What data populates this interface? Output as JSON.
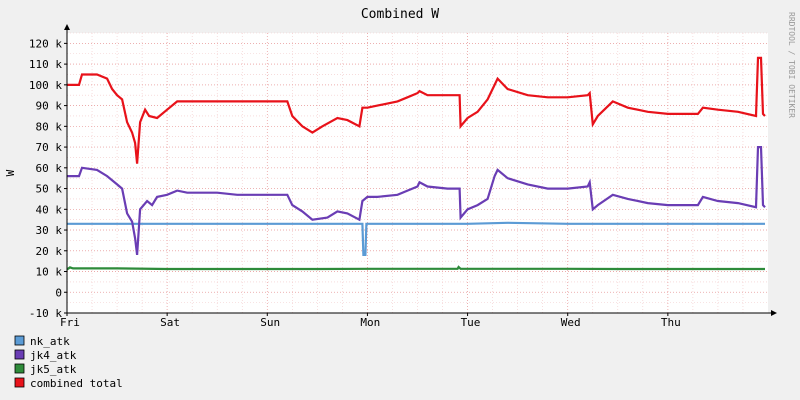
{
  "chart_data": {
    "type": "line",
    "title": "Combined W",
    "ylabel": "W",
    "credit": "RRDTOOL / TOBI OETIKER",
    "ylim": [
      -10000,
      125000
    ],
    "yticks": [
      {
        "value": 120000,
        "label": "120 k"
      },
      {
        "value": 110000,
        "label": "110 k"
      },
      {
        "value": 100000,
        "label": "100 k"
      },
      {
        "value": 90000,
        "label": "90 k"
      },
      {
        "value": 80000,
        "label": "80 k"
      },
      {
        "value": 70000,
        "label": "70 k"
      },
      {
        "value": 60000,
        "label": "60 k"
      },
      {
        "value": 50000,
        "label": "50 k"
      },
      {
        "value": 40000,
        "label": "40 k"
      },
      {
        "value": 30000,
        "label": "30 k"
      },
      {
        "value": 20000,
        "label": "20 k"
      },
      {
        "value": 10000,
        "label": "10 k"
      },
      {
        "value": 0,
        "label": "0"
      },
      {
        "value": -10000,
        "label": "-10 k"
      }
    ],
    "xlim": [
      0,
      7
    ],
    "xticks": [
      {
        "value": 0,
        "label": "Fri"
      },
      {
        "value": 1,
        "label": "Sat"
      },
      {
        "value": 2,
        "label": "Sun"
      },
      {
        "value": 3,
        "label": "Mon"
      },
      {
        "value": 4,
        "label": "Tue"
      },
      {
        "value": 5,
        "label": "Wed"
      },
      {
        "value": 6,
        "label": "Thu"
      }
    ],
    "grid": true,
    "legend_position": "bottom-left",
    "series": [
      {
        "name": "nk_atk",
        "color": "#5b9bd5",
        "points": [
          [
            0,
            33000
          ],
          [
            0.5,
            33000
          ],
          [
            1,
            33000
          ],
          [
            1.5,
            33000
          ],
          [
            2,
            33000
          ],
          [
            2.5,
            33000
          ],
          [
            2.95,
            33000
          ],
          [
            2.96,
            18000
          ],
          [
            2.98,
            18000
          ],
          [
            2.99,
            33000
          ],
          [
            3.5,
            33000
          ],
          [
            4,
            33000
          ],
          [
            4.4,
            33500
          ],
          [
            5,
            33000
          ],
          [
            5.5,
            33000
          ],
          [
            6,
            33000
          ],
          [
            6.5,
            33000
          ],
          [
            6.97,
            33000
          ]
        ]
      },
      {
        "name": "jk4_atk",
        "color": "#6a3db4",
        "points": [
          [
            0,
            56000
          ],
          [
            0.12,
            56000
          ],
          [
            0.15,
            60000
          ],
          [
            0.3,
            59000
          ],
          [
            0.4,
            56000
          ],
          [
            0.5,
            52000
          ],
          [
            0.55,
            50000
          ],
          [
            0.6,
            38000
          ],
          [
            0.65,
            34000
          ],
          [
            0.68,
            26000
          ],
          [
            0.7,
            18000
          ],
          [
            0.73,
            40000
          ],
          [
            0.8,
            44000
          ],
          [
            0.85,
            42000
          ],
          [
            0.9,
            46000
          ],
          [
            1,
            47000
          ],
          [
            1.1,
            49000
          ],
          [
            1.2,
            48000
          ],
          [
            1.5,
            48000
          ],
          [
            1.7,
            47000
          ],
          [
            2.2,
            47000
          ],
          [
            2.25,
            42000
          ],
          [
            2.35,
            39000
          ],
          [
            2.45,
            35000
          ],
          [
            2.6,
            36000
          ],
          [
            2.7,
            39000
          ],
          [
            2.8,
            38000
          ],
          [
            2.92,
            35000
          ],
          [
            2.95,
            44000
          ],
          [
            3,
            46000
          ],
          [
            3.1,
            46000
          ],
          [
            3.3,
            47000
          ],
          [
            3.4,
            49000
          ],
          [
            3.5,
            51000
          ],
          [
            3.52,
            53000
          ],
          [
            3.6,
            51000
          ],
          [
            3.8,
            50000
          ],
          [
            3.92,
            50000
          ],
          [
            3.93,
            36000
          ],
          [
            4,
            40000
          ],
          [
            4.1,
            42000
          ],
          [
            4.2,
            45000
          ],
          [
            4.27,
            56000
          ],
          [
            4.3,
            59000
          ],
          [
            4.4,
            55000
          ],
          [
            4.6,
            52000
          ],
          [
            4.8,
            50000
          ],
          [
            5,
            50000
          ],
          [
            5.2,
            51000
          ],
          [
            5.22,
            53000
          ],
          [
            5.25,
            40000
          ],
          [
            5.3,
            42000
          ],
          [
            5.45,
            47000
          ],
          [
            5.6,
            45000
          ],
          [
            5.8,
            43000
          ],
          [
            6,
            42000
          ],
          [
            6.3,
            42000
          ],
          [
            6.35,
            46000
          ],
          [
            6.5,
            44000
          ],
          [
            6.7,
            43000
          ],
          [
            6.88,
            41000
          ],
          [
            6.9,
            70000
          ],
          [
            6.93,
            70000
          ],
          [
            6.95,
            42000
          ],
          [
            6.97,
            41000
          ]
        ]
      },
      {
        "name": "jk5_atk",
        "color": "#2e8b3a",
        "points": [
          [
            0,
            11000
          ],
          [
            0.03,
            12000
          ],
          [
            0.06,
            11500
          ],
          [
            0.5,
            11500
          ],
          [
            1,
            11200
          ],
          [
            1.5,
            11200
          ],
          [
            2,
            11200
          ],
          [
            2.5,
            11200
          ],
          [
            3,
            11300
          ],
          [
            3.5,
            11300
          ],
          [
            3.9,
            11300
          ],
          [
            3.91,
            12200
          ],
          [
            3.93,
            11300
          ],
          [
            4.5,
            11300
          ],
          [
            5,
            11300
          ],
          [
            5.5,
            11200
          ],
          [
            6,
            11200
          ],
          [
            6.5,
            11200
          ],
          [
            6.97,
            11200
          ]
        ]
      },
      {
        "name": "combined total",
        "color": "#e8121a",
        "points": [
          [
            0,
            100000
          ],
          [
            0.12,
            100000
          ],
          [
            0.15,
            105000
          ],
          [
            0.3,
            105000
          ],
          [
            0.4,
            103000
          ],
          [
            0.45,
            98000
          ],
          [
            0.5,
            95000
          ],
          [
            0.55,
            93000
          ],
          [
            0.6,
            82000
          ],
          [
            0.65,
            77000
          ],
          [
            0.68,
            72000
          ],
          [
            0.7,
            62000
          ],
          [
            0.73,
            82000
          ],
          [
            0.78,
            88000
          ],
          [
            0.82,
            85000
          ],
          [
            0.9,
            84000
          ],
          [
            1,
            88000
          ],
          [
            1.1,
            92000
          ],
          [
            1.3,
            92000
          ],
          [
            1.7,
            92000
          ],
          [
            2.2,
            92000
          ],
          [
            2.25,
            85000
          ],
          [
            2.35,
            80000
          ],
          [
            2.45,
            77000
          ],
          [
            2.55,
            80000
          ],
          [
            2.7,
            84000
          ],
          [
            2.8,
            83000
          ],
          [
            2.92,
            80000
          ],
          [
            2.95,
            89000
          ],
          [
            3,
            89000
          ],
          [
            3.1,
            90000
          ],
          [
            3.3,
            92000
          ],
          [
            3.4,
            94000
          ],
          [
            3.5,
            96000
          ],
          [
            3.52,
            97000
          ],
          [
            3.6,
            95000
          ],
          [
            3.8,
            95000
          ],
          [
            3.92,
            95000
          ],
          [
            3.93,
            80000
          ],
          [
            4,
            84000
          ],
          [
            4.1,
            87000
          ],
          [
            4.2,
            93000
          ],
          [
            4.27,
            100000
          ],
          [
            4.3,
            103000
          ],
          [
            4.4,
            98000
          ],
          [
            4.6,
            95000
          ],
          [
            4.8,
            94000
          ],
          [
            5,
            94000
          ],
          [
            5.2,
            95000
          ],
          [
            5.22,
            96000
          ],
          [
            5.25,
            81000
          ],
          [
            5.3,
            85000
          ],
          [
            5.45,
            92000
          ],
          [
            5.6,
            89000
          ],
          [
            5.8,
            87000
          ],
          [
            6,
            86000
          ],
          [
            6.3,
            86000
          ],
          [
            6.35,
            89000
          ],
          [
            6.5,
            88000
          ],
          [
            6.7,
            87000
          ],
          [
            6.88,
            85000
          ],
          [
            6.9,
            113000
          ],
          [
            6.93,
            113000
          ],
          [
            6.95,
            86000
          ],
          [
            6.97,
            85000
          ]
        ]
      }
    ]
  }
}
